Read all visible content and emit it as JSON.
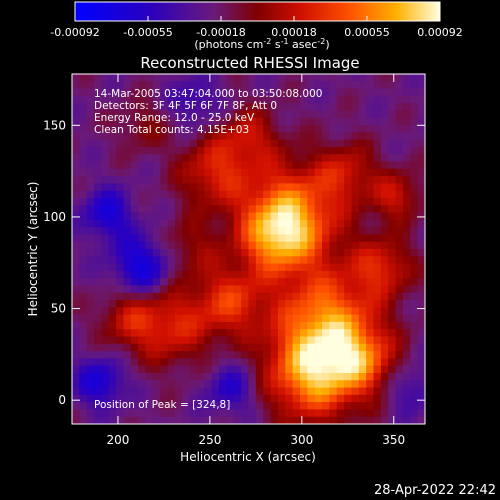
{
  "colorbar": {
    "ticks": [
      "-0.00092",
      "-0.00055",
      "-0.00018",
      "0.00018",
      "0.00055",
      "0.00092"
    ],
    "unit_main": "(photons cm",
    "unit_exp1": "-2",
    "unit_mid1": " s",
    "unit_exp2": "-1",
    "unit_mid2": " asec",
    "unit_exp3": "-2",
    "unit_end": ")"
  },
  "chart_data": {
    "type": "heatmap",
    "title": "Reconstructed RHESSI Image",
    "xlabel": "Heliocentric X (arcsec)",
    "ylabel": "Heliocentric Y (arcsec)",
    "xlim": [
      175,
      367
    ],
    "ylim": [
      -13,
      178
    ],
    "x_ticks": [
      200,
      250,
      300,
      350
    ],
    "y_ticks": [
      0,
      50,
      100,
      150
    ],
    "color_range": [
      -0.00092,
      0.00092
    ],
    "annotations": [
      "14-Mar-2005 03:47:04.000 to 03:50:08.000",
      "Detectors: 3F 4F 5F 6F 7F 8F, Att 0",
      "Energy Range: 12.0 - 25.0 keV",
      "Clean     Total counts: 4.15E+03"
    ],
    "peak_label": "Position of Peak = [324,8]",
    "peak_position": [
      324,
      8
    ]
  },
  "footer": {
    "timestamp": "28-Apr-2022 22:42"
  }
}
